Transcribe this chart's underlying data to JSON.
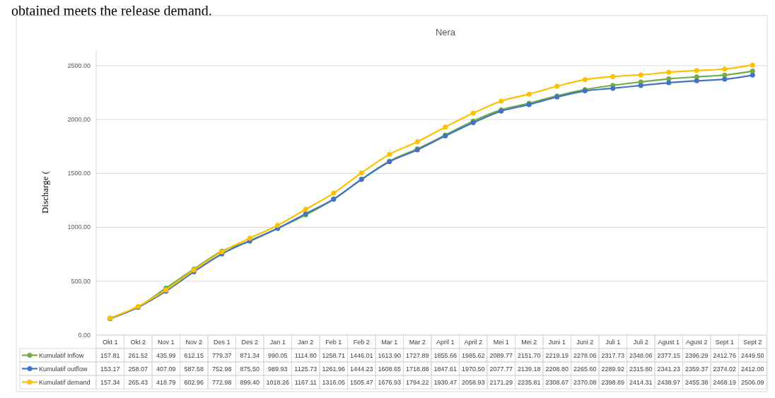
{
  "chart_data": {
    "type": "line",
    "title": "Nera",
    "ylabel": "Discharge (",
    "annotations": [
      "obtained meets the release demand."
    ],
    "categories": [
      "Okt 1",
      "Okt 2",
      "Nov 1",
      "Nov 2",
      "Des 1",
      "Des 2",
      "Jan 1",
      "Jan 2",
      "Feb 1",
      "Feb 2",
      "Mar 1",
      "Mar 2",
      "April 1",
      "April 2",
      "Mei 1",
      "Mei 2",
      "Juni 1",
      "Juni 2",
      "Juli 1",
      "Juli 2",
      "Agust 1",
      "Agust 2",
      "Sept 1",
      "Sept 2"
    ],
    "series": [
      {
        "name": "Kumulatif Inflow",
        "color": "#70ad47",
        "values": [
          157.81,
          261.52,
          435.99,
          612.15,
          779.37,
          871.34,
          990.05,
          1114.8,
          1258.71,
          1446.01,
          1613.9,
          1727.89,
          1855.66,
          1985.62,
          2089.77,
          2151.7,
          2219.19,
          2278.06,
          2317.73,
          2348.06,
          2377.15,
          2396.29,
          2412.76,
          2449.5
        ],
        "value_labels": [
          "157.81",
          "261.52",
          "435.99",
          "612.15",
          "779.37",
          "871.34",
          "990.05",
          "1114.80",
          "1258.71",
          "1446.01",
          "1613.90",
          "1727.89",
          "1855.66",
          "1985.62",
          "2089.77",
          "2151.70",
          "2219.19",
          "2278.06",
          "2317.73",
          "2348.06",
          "2377.15",
          "2396.29",
          "2412.76",
          "2449.50"
        ]
      },
      {
        "name": "Kumulatif outflow",
        "color": "#4472c4",
        "values": [
          153.17,
          258.07,
          407.09,
          587.58,
          752.98,
          875.5,
          989.93,
          1125.73,
          1261.96,
          1444.23,
          1608.65,
          1718.88,
          1847.61,
          1970.5,
          2077.77,
          2139.18,
          2208.8,
          2265.6,
          2289.92,
          2315.8,
          2341.23,
          2359.37,
          2374.02,
          2412.0
        ],
        "value_labels": [
          "153.17",
          "258.07",
          "407.09",
          "587.58",
          "752.98",
          "875.50",
          "989.93",
          "1125.73",
          "1261.96",
          "1444.23",
          "1608.65",
          "1718.88",
          "1847.61",
          "1970.50",
          "2077.77",
          "2139.18",
          "2208.80",
          "2265.60",
          "2289.92",
          "2315.80",
          "2341.23",
          "2359.37",
          "2374.02",
          "2412.00"
        ]
      },
      {
        "name": "Kumulatif demand",
        "color": "#ffc000",
        "values": [
          157.34,
          265.43,
          418.79,
          602.96,
          772.98,
          899.4,
          1018.26,
          1167.11,
          1316.05,
          1505.47,
          1676.93,
          1794.22,
          1930.47,
          2058.93,
          2171.29,
          2235.81,
          2308.67,
          2370.08,
          2398.89,
          2414.31,
          2438.97,
          2455.38,
          2468.19,
          2506.09
        ],
        "value_labels": [
          "157.34",
          "265.43",
          "418.79",
          "602.96",
          "772.98",
          "899.40",
          "1018.26",
          "1167.11",
          "1316.05",
          "1505.47",
          "1676.93",
          "1794.22",
          "1930.47",
          "2058.93",
          "2171.29",
          "2235.81",
          "2308.67",
          "2370.08",
          "2398.89",
          "2414.31",
          "2438.97",
          "2455.38",
          "2468.19",
          "2506.09"
        ]
      }
    ],
    "ylim": [
      0,
      2650
    ],
    "yticks": [
      {
        "value": 0,
        "label": "0.00"
      },
      {
        "value": 500,
        "label": "500.00"
      },
      {
        "value": 1000,
        "label": "1000.00"
      },
      {
        "value": 1500,
        "label": "1500.00"
      },
      {
        "value": 2000,
        "label": "2000.00"
      },
      {
        "value": 2500,
        "label": "2500.00"
      }
    ],
    "grid": "y",
    "marker": "circle",
    "line_style": "solid",
    "legend": "bottom"
  }
}
